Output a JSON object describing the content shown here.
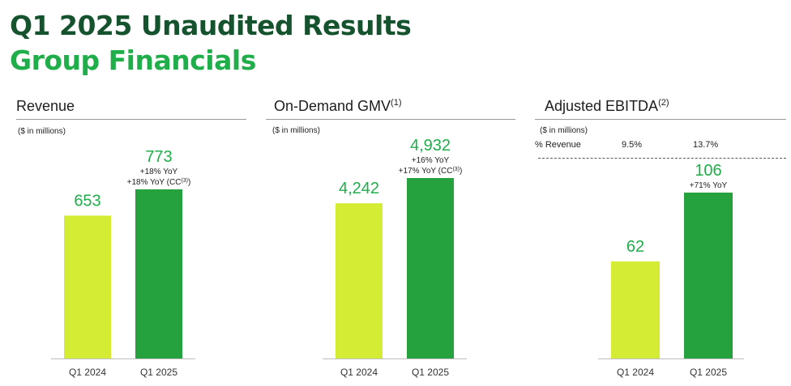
{
  "header": {
    "title": "Q1 2025 Unaudited Results",
    "subtitle": "Group Financials"
  },
  "colors": {
    "title": "#14532d",
    "accent": "#1fae4a",
    "bar_q1_2024": "#d4ed34",
    "bar_q1_2025": "#25a23d"
  },
  "chart_data": [
    {
      "type": "bar",
      "title": "Revenue",
      "title_sup": "",
      "unit_note": "($ in millions)",
      "categories": [
        "Q1 2024",
        "Q1 2025"
      ],
      "values": [
        653,
        773
      ],
      "value_labels": [
        "653",
        "773"
      ],
      "annotations": [
        [],
        [
          "+18% YoY",
          "+18% YoY (CC(3))"
        ]
      ]
    },
    {
      "type": "bar",
      "title": "On-Demand GMV",
      "title_sup": "(1)",
      "unit_note": "($ in millions)",
      "categories": [
        "Q1 2024",
        "Q1 2025"
      ],
      "values": [
        4242,
        4932
      ],
      "value_labels": [
        "4,242",
        "4,932"
      ],
      "annotations": [
        [],
        [
          "+16% YoY",
          "+17% YoY (CC(3))"
        ]
      ]
    },
    {
      "type": "bar",
      "title": "Adjusted EBITDA",
      "title_sup": "(2)",
      "unit_note": "($ in millions)",
      "categories": [
        "Q1 2024",
        "Q1 2025"
      ],
      "values": [
        62,
        106
      ],
      "value_labels": [
        "62",
        "106"
      ],
      "annotations": [
        [],
        [
          "+71% YoY"
        ]
      ],
      "margin_row": {
        "label": "% Revenue",
        "values": [
          "9.5%",
          "13.7%"
        ]
      }
    }
  ]
}
